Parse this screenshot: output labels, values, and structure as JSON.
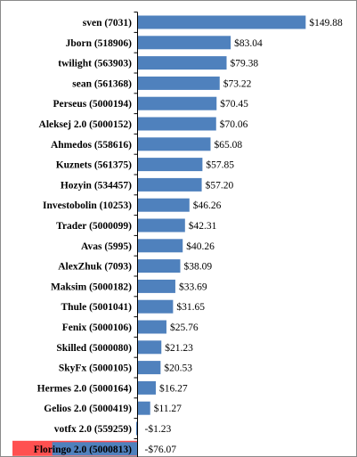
{
  "chart_data": {
    "type": "bar",
    "orientation": "horizontal",
    "categories": [
      "sven (7031)",
      "Jborn (518906)",
      "twilight (563903)",
      "sean (561368)",
      "Perseus (5000194)",
      "Aleksej 2.0 (5000152)",
      "Ahmedos (558616)",
      "Kuznets (561375)",
      "Hozyin (534457)",
      "Investobolin (10253)",
      "Trader (5000099)",
      "Avas (5995)",
      "AlexZhuk (7093)",
      "Maksim (5000182)",
      "Thule (5001041)",
      "Fenix (5000106)",
      "Skilled (5000080)",
      "SkyFx (5000105)",
      "Hermes 2.0 (5000164)",
      "Gelios 2.0 (5000419)",
      "votfx 2.0 (559259)",
      "Floringo 2.0 (5000813)"
    ],
    "values": [
      149.88,
      83.04,
      79.38,
      73.22,
      70.45,
      70.06,
      65.08,
      57.85,
      57.2,
      46.26,
      42.31,
      40.26,
      38.09,
      33.69,
      31.65,
      25.76,
      21.23,
      20.53,
      16.27,
      11.27,
      -1.23,
      -76.07
    ],
    "value_labels": [
      "$149.88",
      "$83.04",
      "$79.38",
      "$73.22",
      "$70.45",
      "$70.06",
      "$65.08",
      "$57.85",
      "$57.20",
      "$46.26",
      "$42.31",
      "$40.26",
      "$38.09",
      "$33.69",
      "$31.65",
      "$25.76",
      "$21.23",
      "$20.53",
      "$16.27",
      "$11.27",
      "-$1.23",
      "-$76.07"
    ],
    "title": "",
    "xlabel": "",
    "ylabel": "",
    "xlim": [
      -76.07,
      149.88
    ],
    "grid": false,
    "legend": false,
    "colors": {
      "bar": "#4f81bd",
      "highlight_label_bg": "#ff5050",
      "axis": "#000000",
      "text": "#000000"
    },
    "highlighted_category": "Floringo 2.0 (5000813)"
  }
}
